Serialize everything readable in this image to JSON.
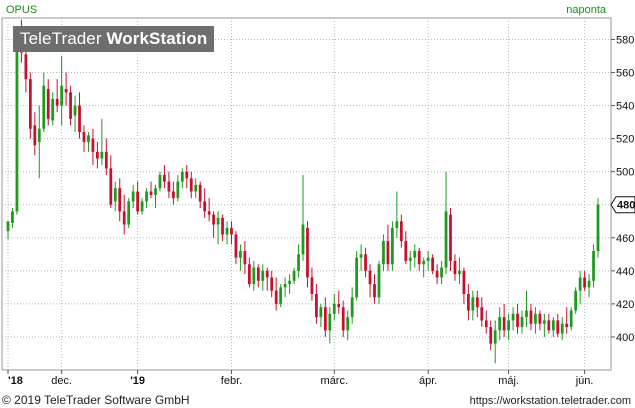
{
  "header": {
    "symbol": "OPUS",
    "period": "naponta",
    "brand_light": "TeleTrader ",
    "brand_bold": "WorkStation"
  },
  "footer": {
    "copyright": "© 2019 TeleTrader Software GmbH",
    "url": "https://workstation.teletrader.com"
  },
  "colors": {
    "up": "#1f9a1f",
    "down": "#c8102e",
    "grid": "#b8b8b8",
    "accent": "#1a8f1a"
  },
  "chart_data": {
    "type": "candlestick",
    "title": "OPUS",
    "period": "naponta",
    "ylim": [
      380,
      593
    ],
    "yticks": [
      400,
      420,
      440,
      460,
      480,
      500,
      520,
      540,
      560,
      580
    ],
    "last_price": 480,
    "x_labels": [
      "'18",
      "dec.",
      "'19",
      "febr.",
      "márc.",
      "ápr.",
      "máj.",
      "jún."
    ],
    "candles": [
      [
        464,
        470,
        459,
        470
      ],
      [
        469,
        478,
        466,
        476
      ],
      [
        476,
        588,
        474,
        582
      ],
      [
        580,
        592,
        566,
        572
      ],
      [
        571,
        574,
        548,
        556
      ],
      [
        556,
        560,
        520,
        526
      ],
      [
        528,
        536,
        510,
        516
      ],
      [
        518,
        540,
        496,
        526
      ],
      [
        526,
        560,
        524,
        552
      ],
      [
        550,
        556,
        528,
        532
      ],
      [
        531,
        548,
        528,
        544
      ],
      [
        544,
        556,
        536,
        540
      ],
      [
        540,
        570,
        528,
        552
      ],
      [
        550,
        560,
        540,
        548
      ],
      [
        548,
        552,
        528,
        532
      ],
      [
        534,
        546,
        524,
        540
      ],
      [
        540,
        548,
        520,
        524
      ],
      [
        524,
        528,
        512,
        518
      ],
      [
        518,
        524,
        512,
        522
      ],
      [
        520,
        526,
        504,
        512
      ],
      [
        512,
        518,
        502,
        508
      ],
      [
        508,
        532,
        504,
        512
      ],
      [
        512,
        520,
        498,
        502
      ],
      [
        502,
        510,
        478,
        480
      ],
      [
        482,
        494,
        476,
        490
      ],
      [
        490,
        496,
        470,
        476
      ],
      [
        476,
        486,
        462,
        468
      ],
      [
        468,
        484,
        466,
        482
      ],
      [
        482,
        492,
        478,
        488
      ],
      [
        488,
        494,
        474,
        476
      ],
      [
        476,
        484,
        474,
        482
      ],
      [
        482,
        490,
        478,
        488
      ],
      [
        488,
        494,
        484,
        486
      ],
      [
        486,
        492,
        478,
        490
      ],
      [
        490,
        500,
        488,
        498
      ],
      [
        498,
        504,
        490,
        494
      ],
      [
        494,
        500,
        484,
        488
      ],
      [
        488,
        494,
        480,
        484
      ],
      [
        484,
        498,
        482,
        494
      ],
      [
        494,
        502,
        490,
        500
      ],
      [
        500,
        504,
        490,
        496
      ],
      [
        496,
        500,
        484,
        488
      ],
      [
        488,
        496,
        484,
        492
      ],
      [
        492,
        494,
        478,
        482
      ],
      [
        482,
        490,
        472,
        476
      ],
      [
        476,
        484,
        470,
        474
      ],
      [
        474,
        476,
        460,
        468
      ],
      [
        468,
        476,
        456,
        472
      ],
      [
        472,
        474,
        458,
        462
      ],
      [
        462,
        470,
        456,
        466
      ],
      [
        466,
        470,
        456,
        462
      ],
      [
        462,
        464,
        444,
        448
      ],
      [
        448,
        456,
        440,
        452
      ],
      [
        452,
        458,
        438,
        444
      ],
      [
        444,
        448,
        430,
        432
      ],
      [
        432,
        446,
        428,
        442
      ],
      [
        442,
        444,
        430,
        434
      ],
      [
        434,
        444,
        428,
        440
      ],
      [
        440,
        442,
        428,
        436
      ],
      [
        436,
        440,
        424,
        428
      ],
      [
        428,
        436,
        416,
        420
      ],
      [
        420,
        432,
        418,
        430
      ],
      [
        430,
        436,
        424,
        432
      ],
      [
        432,
        438,
        426,
        434
      ],
      [
        434,
        442,
        432,
        440
      ],
      [
        440,
        456,
        436,
        450
      ],
      [
        450,
        498,
        446,
        468
      ],
      [
        466,
        470,
        430,
        436
      ],
      [
        436,
        442,
        422,
        426
      ],
      [
        426,
        432,
        408,
        412
      ],
      [
        412,
        420,
        406,
        418
      ],
      [
        418,
        424,
        400,
        404
      ],
      [
        404,
        418,
        396,
        414
      ],
      [
        414,
        426,
        410,
        420
      ],
      [
        420,
        428,
        414,
        418
      ],
      [
        418,
        422,
        400,
        404
      ],
      [
        404,
        416,
        398,
        412
      ],
      [
        412,
        430,
        408,
        424
      ],
      [
        424,
        452,
        422,
        448
      ],
      [
        448,
        456,
        440,
        450
      ],
      [
        450,
        454,
        436,
        440
      ],
      [
        440,
        444,
        424,
        432
      ],
      [
        432,
        438,
        420,
        424
      ],
      [
        424,
        446,
        420,
        444
      ],
      [
        444,
        462,
        440,
        458
      ],
      [
        458,
        468,
        440,
        444
      ],
      [
        444,
        470,
        440,
        466
      ],
      [
        466,
        488,
        460,
        470
      ],
      [
        470,
        474,
        454,
        458
      ],
      [
        458,
        464,
        444,
        446
      ],
      [
        446,
        452,
        440,
        448
      ],
      [
        448,
        456,
        442,
        452
      ],
      [
        452,
        454,
        440,
        444
      ],
      [
        444,
        448,
        436,
        446
      ],
      [
        446,
        452,
        440,
        448
      ],
      [
        448,
        450,
        438,
        440
      ],
      [
        440,
        444,
        432,
        436
      ],
      [
        436,
        446,
        432,
        442
      ],
      [
        442,
        500,
        438,
        476
      ],
      [
        474,
        478,
        440,
        446
      ],
      [
        446,
        450,
        434,
        438
      ],
      [
        438,
        448,
        432,
        440
      ],
      [
        440,
        442,
        420,
        426
      ],
      [
        426,
        432,
        410,
        416
      ],
      [
        416,
        428,
        410,
        424
      ],
      [
        424,
        428,
        412,
        418
      ],
      [
        418,
        424,
        406,
        410
      ],
      [
        410,
        416,
        402,
        406
      ],
      [
        406,
        410,
        392,
        396
      ],
      [
        396,
        410,
        384,
        404
      ],
      [
        404,
        418,
        398,
        412
      ],
      [
        412,
        420,
        400,
        404
      ],
      [
        404,
        414,
        398,
        410
      ],
      [
        410,
        418,
        404,
        414
      ],
      [
        414,
        420,
        402,
        406
      ],
      [
        406,
        416,
        402,
        412
      ],
      [
        412,
        428,
        406,
        416
      ],
      [
        416,
        420,
        404,
        408
      ],
      [
        408,
        418,
        402,
        414
      ],
      [
        414,
        416,
        404,
        408
      ],
      [
        408,
        414,
        400,
        410
      ],
      [
        410,
        414,
        402,
        404
      ],
      [
        404,
        412,
        400,
        410
      ],
      [
        410,
        414,
        400,
        402
      ],
      [
        402,
        412,
        398,
        408
      ],
      [
        408,
        418,
        402,
        406
      ],
      [
        406,
        418,
        404,
        416
      ],
      [
        416,
        430,
        414,
        428
      ],
      [
        428,
        440,
        420,
        436
      ],
      [
        436,
        440,
        428,
        430
      ],
      [
        430,
        438,
        424,
        434
      ],
      [
        434,
        456,
        430,
        452
      ],
      [
        452,
        484,
        448,
        480
      ]
    ]
  }
}
